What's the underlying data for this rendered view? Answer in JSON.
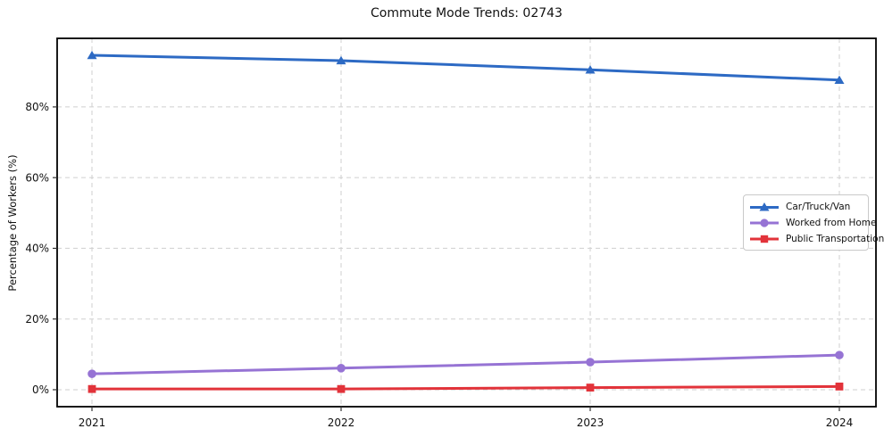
{
  "chart_data": {
    "type": "line",
    "title": "Commute Mode Trends: 02743",
    "xlabel": "",
    "ylabel": "Percentage of Workers (%)",
    "x_labels": [
      "2021",
      "2022",
      "2023",
      "2024"
    ],
    "yticks": [
      0,
      20,
      40,
      60,
      80
    ],
    "ytick_labels": [
      "0%",
      "20%",
      "40%",
      "60%",
      "80%"
    ],
    "ylim": [
      -4.8,
      99.4
    ],
    "grid": {
      "visible": true,
      "style": "dashed",
      "color": "#cfcfcf",
      "axes": "both"
    },
    "frame_color": "#000000",
    "tick_color": "#333333",
    "legend": {
      "position": "center-right",
      "border_color": "#c9c9c9",
      "background": "#ffffff"
    },
    "series": [
      {
        "name": "Car/Truck/Van",
        "marker": "triangle",
        "color": "#2d6ac4",
        "values": [
          94.6,
          93.1,
          90.5,
          87.6
        ]
      },
      {
        "name": "Worked from Home",
        "marker": "circle",
        "color": "#9673d4",
        "values": [
          4.5,
          6.1,
          7.8,
          9.8
        ]
      },
      {
        "name": "Public Transportation",
        "marker": "square",
        "color": "#e2333a",
        "values": [
          0.2,
          0.2,
          0.6,
          0.9
        ]
      }
    ]
  }
}
